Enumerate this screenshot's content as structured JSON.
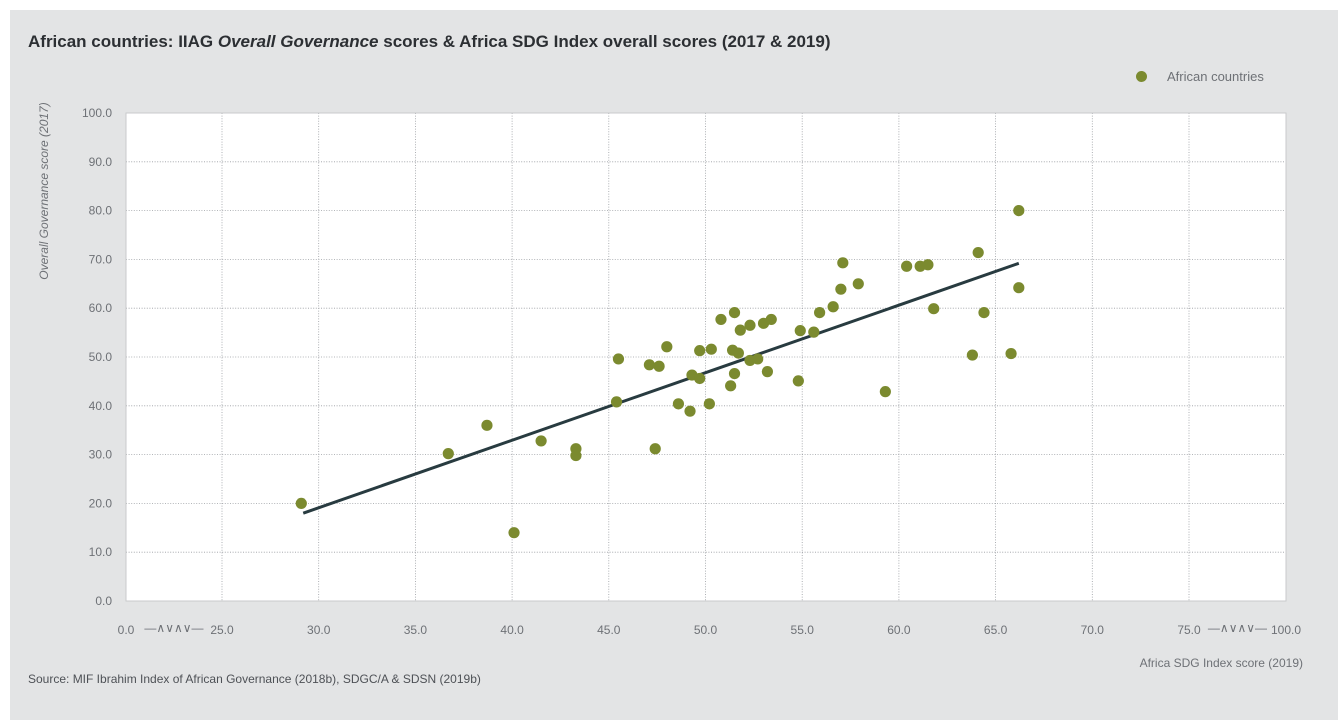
{
  "title": {
    "part1": "African countries: IIAG ",
    "part2": "Overall Governance",
    "part3": " scores & Africa SDG Index overall scores (2017 & 2019)"
  },
  "source": "Source: MIF Ibrahim Index of African Governance (2018b), SDGC/A & SDSN (2019b)",
  "colors": {
    "points": "#7b8a2f",
    "trend": "#283b40",
    "panel": "#e3e4e5"
  },
  "chart_data": {
    "type": "scatter",
    "xlabel": "Africa SDG Index score (2019)",
    "ylabel": "Overall Governance score (2017)",
    "legend": {
      "label": "African countries",
      "placement": "top-right"
    },
    "grid": true,
    "axis_break_symbol": "—∧∨∧∨—",
    "x_ticks": [
      "0.0",
      "25.0",
      "30.0",
      "35.0",
      "40.0",
      "45.0",
      "50.0",
      "55.0",
      "60.0",
      "65.0",
      "70.0",
      "75.0",
      "100.0"
    ],
    "y_ticks": [
      "0.0",
      "10.0",
      "20.0",
      "30.0",
      "40.0",
      "50.0",
      "60.0",
      "70.0",
      "80.0",
      "90.0",
      "100.0"
    ],
    "xlim_break": [
      25.0,
      75.0
    ],
    "ylim": [
      0,
      100
    ],
    "trendline": {
      "x": [
        29.2,
        66.2
      ],
      "y": [
        18.0,
        69.2
      ]
    },
    "points": [
      {
        "x": 29.1,
        "y": 20.0
      },
      {
        "x": 36.7,
        "y": 30.2
      },
      {
        "x": 38.7,
        "y": 36.0
      },
      {
        "x": 40.1,
        "y": 14.0
      },
      {
        "x": 41.5,
        "y": 32.8
      },
      {
        "x": 43.3,
        "y": 29.8
      },
      {
        "x": 43.3,
        "y": 31.2
      },
      {
        "x": 45.4,
        "y": 40.8
      },
      {
        "x": 45.5,
        "y": 49.6
      },
      {
        "x": 47.1,
        "y": 48.4
      },
      {
        "x": 47.4,
        "y": 31.2
      },
      {
        "x": 47.6,
        "y": 48.1
      },
      {
        "x": 48.0,
        "y": 52.1
      },
      {
        "x": 48.6,
        "y": 40.4
      },
      {
        "x": 49.2,
        "y": 38.9
      },
      {
        "x": 49.3,
        "y": 46.3
      },
      {
        "x": 49.7,
        "y": 45.6
      },
      {
        "x": 49.7,
        "y": 51.3
      },
      {
        "x": 50.2,
        "y": 40.4
      },
      {
        "x": 50.3,
        "y": 51.6
      },
      {
        "x": 50.8,
        "y": 57.7
      },
      {
        "x": 51.3,
        "y": 44.1
      },
      {
        "x": 51.4,
        "y": 51.4
      },
      {
        "x": 51.5,
        "y": 59.1
      },
      {
        "x": 51.5,
        "y": 46.6
      },
      {
        "x": 51.7,
        "y": 50.8
      },
      {
        "x": 51.8,
        "y": 55.5
      },
      {
        "x": 52.3,
        "y": 56.5
      },
      {
        "x": 52.3,
        "y": 49.3
      },
      {
        "x": 52.7,
        "y": 49.6
      },
      {
        "x": 53.0,
        "y": 56.9
      },
      {
        "x": 53.2,
        "y": 47.0
      },
      {
        "x": 53.4,
        "y": 57.7
      },
      {
        "x": 54.8,
        "y": 45.1
      },
      {
        "x": 54.9,
        "y": 55.4
      },
      {
        "x": 55.6,
        "y": 55.1
      },
      {
        "x": 55.9,
        "y": 59.1
      },
      {
        "x": 56.6,
        "y": 60.3
      },
      {
        "x": 57.0,
        "y": 63.9
      },
      {
        "x": 57.1,
        "y": 69.3
      },
      {
        "x": 57.9,
        "y": 65.0
      },
      {
        "x": 59.3,
        "y": 42.9
      },
      {
        "x": 60.4,
        "y": 68.6
      },
      {
        "x": 61.1,
        "y": 68.6
      },
      {
        "x": 61.5,
        "y": 68.9
      },
      {
        "x": 61.8,
        "y": 59.9
      },
      {
        "x": 63.8,
        "y": 50.4
      },
      {
        "x": 64.1,
        "y": 71.4
      },
      {
        "x": 64.4,
        "y": 59.1
      },
      {
        "x": 65.8,
        "y": 50.7
      },
      {
        "x": 66.2,
        "y": 64.2
      },
      {
        "x": 66.2,
        "y": 80.0
      }
    ]
  }
}
